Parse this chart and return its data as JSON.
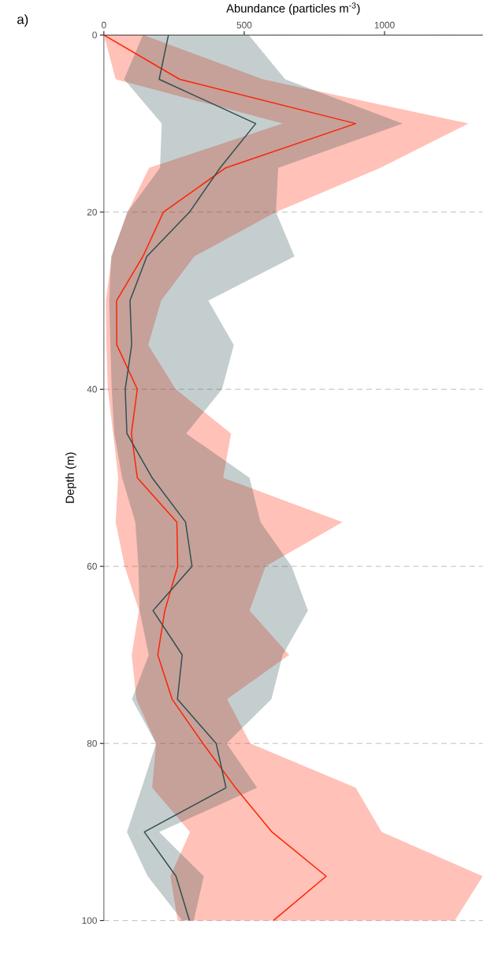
{
  "chart_data": {
    "type": "line",
    "orientation": "horizontal",
    "xlabel": "Abundance (particles m$^{-3}$)",
    "ylabel": "Depth (m)",
    "annotations": [
      "a)"
    ],
    "x": [
      0,
      5,
      10,
      15,
      20,
      25,
      30,
      35,
      40,
      45,
      50,
      55,
      60,
      65,
      70,
      75,
      80,
      85,
      90,
      95,
      100
    ],
    "series": [
      {
        "color": "#ff2200",
        "values": [
          0,
          270,
          897,
          434,
          212,
          139,
          45,
          46,
          119,
          98,
          119,
          260,
          263,
          217,
          192,
          243,
          353,
          469,
          599,
          792,
          604
        ],
        "lower": [
          0,
          42,
          637,
          161,
          84,
          28,
          7,
          9,
          14,
          33,
          51,
          42,
          74,
          125,
          99,
          116,
          186,
          172,
          307,
          237,
          263
        ],
        "upper": [
          140,
          567,
          1299,
          985,
          613,
          322,
          204,
          158,
          256,
          453,
          425,
          850,
          576,
          519,
          660,
          439,
          522,
          897,
          990,
          1350,
          1250
        ]
      },
      {
        "color": "#2f4f4f",
        "values": [
          230,
          197,
          541,
          414,
          305,
          153,
          93,
          99,
          76,
          82,
          172,
          291,
          314,
          175,
          279,
          262,
          400,
          435,
          144,
          257,
          305
        ],
        "lower": [
          139,
          72,
          206,
          200,
          84,
          26,
          19,
          23,
          28,
          37,
          65,
          112,
          123,
          127,
          160,
          100,
          186,
          135,
          82,
          156,
          280
        ],
        "upper": [
          516,
          646,
          1064,
          621,
          613,
          679,
          372,
          463,
          421,
          293,
          519,
          558,
          669,
          727,
          637,
          597,
          437,
          546,
          197,
          356,
          320
        ]
      }
    ],
    "xlim": [
      0,
      1350
    ],
    "xticks": [
      0,
      500,
      1000
    ],
    "ylim": [
      100,
      0
    ],
    "yticks": [
      0,
      20,
      40,
      60,
      80,
      100
    ],
    "grid": "y",
    "line_style": "solid",
    "ref_lines": [
      {
        "axis": "y",
        "value": 0,
        "color": "#333333",
        "line_style": "solid"
      }
    ]
  }
}
